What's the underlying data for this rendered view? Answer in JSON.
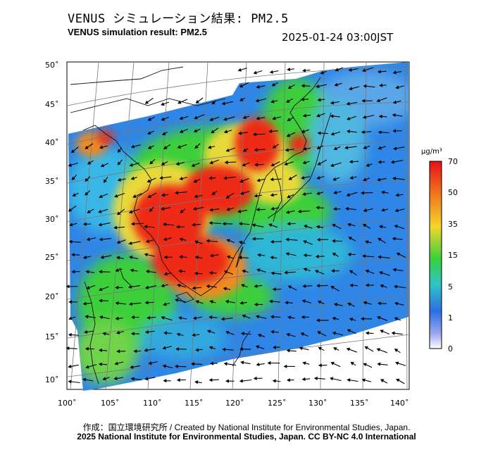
{
  "header": {
    "title_jp": "VENUS シミュレーション結果: PM2.5",
    "title_en": "VENUS simulation result: PM2.5",
    "timestamp": "2025-01-24 03:00JST"
  },
  "footer": {
    "credit_line1": "作成：国立環境研究所 / Created by National Institute for Environmental Studies, Japan.",
    "credit_line2": "2025 National Institute for Environmental Studies, Japan. CC BY-NC 4.0 International"
  },
  "map": {
    "lon_labels": [
      "100˚",
      "105˚",
      "110˚",
      "115˚",
      "120˚",
      "125˚",
      "130˚",
      "135˚",
      "140˚"
    ],
    "lat_labels": [
      "50˚",
      "45˚",
      "40˚",
      "35˚",
      "30˚",
      "25˚",
      "20˚",
      "15˚",
      "10˚"
    ],
    "lon_range": [
      100,
      141
    ],
    "lat_range": [
      9,
      51
    ],
    "colors": {
      "ocean_blue": "#2f7fe6",
      "sea_cyan": "#39b7e6",
      "green": "#3dcf3a",
      "yellow": "#e8d93a",
      "orange": "#f08a24",
      "red": "#ee2a16",
      "background": "#ffffff"
    }
  },
  "colorbar": {
    "unit": "μg/m³",
    "ticks": [
      "70",
      "50",
      "35",
      "15",
      "5",
      "1",
      "0"
    ],
    "colors_top_to_bottom": [
      "#e8101a",
      "#f07a1c",
      "#f2d52c",
      "#39d13b",
      "#2fc3c8",
      "#2c6fe2",
      "#ffffff"
    ]
  }
}
